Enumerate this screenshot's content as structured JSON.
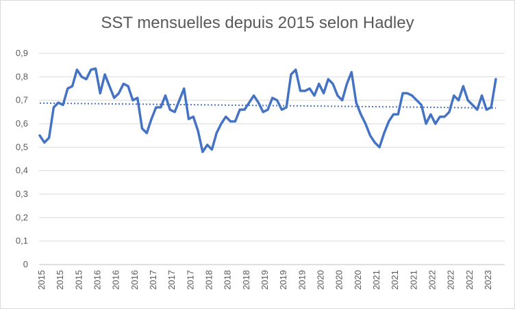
{
  "chart_data": {
    "type": "line",
    "title": "SST mensuelles depuis 2015 selon Hadley",
    "xlabel": "",
    "ylabel": "",
    "ylim": [
      0,
      0.9
    ],
    "yticks": [
      "0",
      "0,1",
      "0,2",
      "0,3",
      "0,4",
      "0,5",
      "0,6",
      "0,7",
      "0,8",
      "0,9"
    ],
    "x_tick_labels": [
      "2015",
      "2015",
      "2015",
      "2016",
      "2016",
      "2016",
      "2017",
      "2017",
      "2017",
      "2018",
      "2018",
      "2018",
      "2019",
      "2019",
      "2019",
      "2020",
      "2020",
      "2020",
      "2021",
      "2021",
      "2021",
      "2022",
      "2022",
      "2022",
      "2023"
    ],
    "grid": true,
    "legend": "none",
    "series": [
      {
        "values": [
          0.55,
          0.52,
          0.54,
          0.67,
          0.69,
          0.68,
          0.75,
          0.76,
          0.83,
          0.8,
          0.79,
          0.83,
          0.835,
          0.73,
          0.81,
          0.76,
          0.71,
          0.73,
          0.77,
          0.76,
          0.7,
          0.71,
          0.58,
          0.56,
          0.62,
          0.67,
          0.67,
          0.72,
          0.66,
          0.65,
          0.7,
          0.75,
          0.62,
          0.63,
          0.57,
          0.48,
          0.51,
          0.49,
          0.56,
          0.6,
          0.63,
          0.61,
          0.61,
          0.66,
          0.66,
          0.69,
          0.72,
          0.69,
          0.65,
          0.66,
          0.71,
          0.7,
          0.66,
          0.67,
          0.81,
          0.83,
          0.74,
          0.74,
          0.75,
          0.72,
          0.77,
          0.73,
          0.79,
          0.77,
          0.72,
          0.7,
          0.77,
          0.82,
          0.69,
          0.64,
          0.6,
          0.55,
          0.52,
          0.5,
          0.56,
          0.61,
          0.64,
          0.64,
          0.73,
          0.73,
          0.72,
          0.7,
          0.68,
          0.6,
          0.64,
          0.6,
          0.63,
          0.63,
          0.65,
          0.72,
          0.7,
          0.76,
          0.7,
          0.68,
          0.66,
          0.72,
          0.66,
          0.67,
          0.79
        ],
        "color": "#4472c4"
      },
      {
        "type": "trendline",
        "start": 0.688,
        "end": 0.667,
        "color": "#4472c4",
        "style": "dotted"
      }
    ]
  }
}
